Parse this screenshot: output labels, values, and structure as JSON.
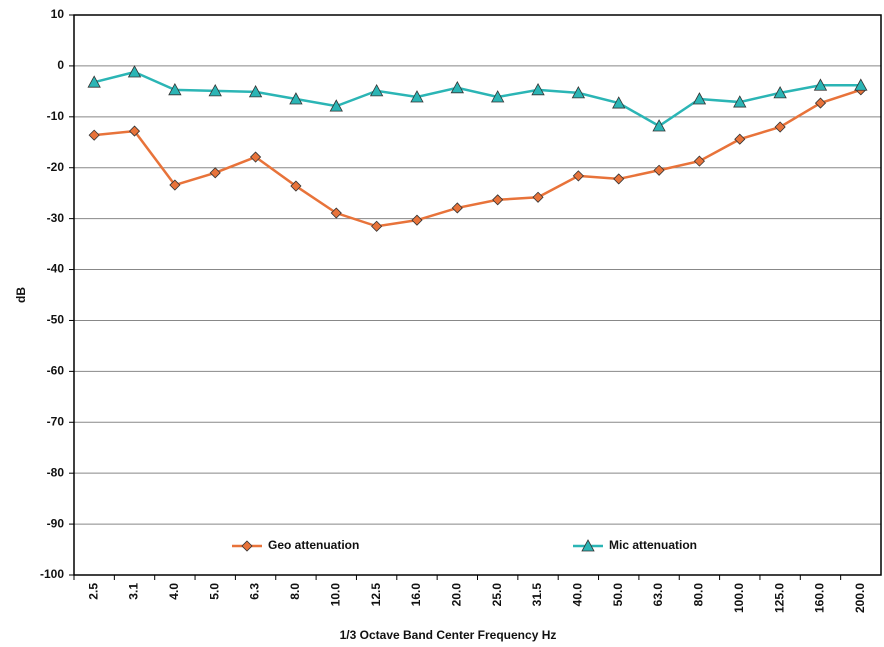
{
  "chart_data": {
    "type": "line",
    "x_label": "1/3 Octave Band Center Frequency Hz",
    "y_label": "dB",
    "categories": [
      "2.5",
      "3.1",
      "4.0",
      "5.0",
      "6.3",
      "8.0",
      "10.0",
      "12.5",
      "16.0",
      "20.0",
      "25.0",
      "31.5",
      "40.0",
      "50.0",
      "63.0",
      "80.0",
      "100.0",
      "125.0",
      "160.0",
      "200.0"
    ],
    "series": [
      {
        "name": "Geo attenuation",
        "color": "#e8733a",
        "marker": "diamond",
        "values": [
          -13.6,
          -12.8,
          -23.4,
          -21.0,
          -17.9,
          -23.6,
          -28.9,
          -31.5,
          -30.3,
          -27.9,
          -26.3,
          -25.8,
          -21.6,
          -22.2,
          -20.5,
          -18.7,
          -14.4,
          -12.0,
          -7.3,
          -4.7
        ]
      },
      {
        "name": "Mic attenuation",
        "color": "#2bb5b5",
        "marker": "triangle",
        "values": [
          -3.2,
          -1.2,
          -4.7,
          -4.9,
          -5.1,
          -6.5,
          -7.9,
          -4.9,
          -6.1,
          -4.3,
          -6.1,
          -4.7,
          -5.3,
          -7.3,
          -11.8,
          -6.5,
          -7.1,
          -5.3,
          -3.8,
          -3.8
        ]
      }
    ],
    "ylim": [
      -100,
      10
    ],
    "yticks": [
      10,
      0,
      -10,
      -20,
      -30,
      -40,
      -50,
      -60,
      -70,
      -80,
      -90,
      -100
    ],
    "grid": true
  }
}
